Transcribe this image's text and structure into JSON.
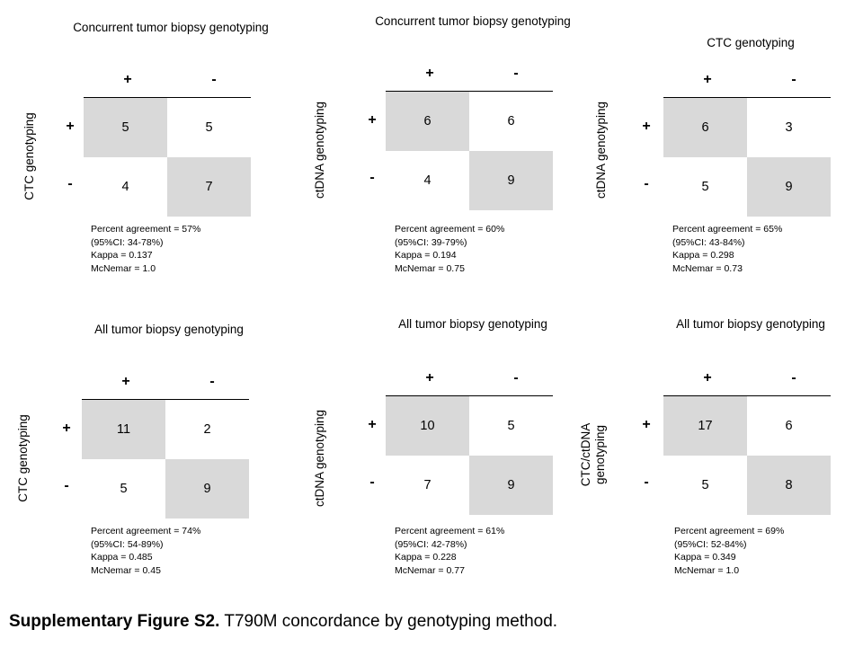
{
  "panels": [
    {
      "col_title": "Concurrent tumor biopsy genotyping",
      "row_title": "CTC genotyping",
      "col_labels": [
        "+",
        "-"
      ],
      "row_labels": [
        "+",
        "-"
      ],
      "cells": [
        "5",
        "5",
        "4",
        "7"
      ],
      "stats": [
        "Percent agreement = 57%",
        "(95%CI:  34-78%)",
        "Kappa = 0.137",
        "McNemar = 1.0"
      ]
    },
    {
      "col_title": "Concurrent tumor biopsy genotyping",
      "row_title": "ctDNA genotyping",
      "col_labels": [
        "+",
        "-"
      ],
      "row_labels": [
        "+",
        "-"
      ],
      "cells": [
        "6",
        "6",
        "4",
        "9"
      ],
      "stats": [
        "Percent agreement = 60%",
        "(95%CI:  39-79%)",
        "Kappa = 0.194",
        "McNemar = 0.75"
      ]
    },
    {
      "col_title": "CTC genotyping",
      "row_title": "ctDNA genotyping",
      "col_labels": [
        "+",
        "-"
      ],
      "row_labels": [
        "+",
        "-"
      ],
      "cells": [
        "6",
        "3",
        "5",
        "9"
      ],
      "stats": [
        "Percent agreement = 65%",
        "(95%CI:  43-84%)",
        "Kappa = 0.298",
        "McNemar = 0.73"
      ]
    },
    {
      "col_title": "All tumor biopsy genotyping",
      "row_title": "CTC genotyping",
      "col_labels": [
        "+",
        "-"
      ],
      "row_labels": [
        "+",
        "-"
      ],
      "cells": [
        "11",
        "2",
        "5",
        "9"
      ],
      "stats": [
        "Percent agreement = 74%",
        "(95%CI:  54-89%)",
        "Kappa = 0.485",
        "McNemar = 0.45"
      ]
    },
    {
      "col_title": "All tumor biopsy genotyping",
      "row_title": "ctDNA genotyping",
      "col_labels": [
        "+",
        "-"
      ],
      "row_labels": [
        "+",
        "-"
      ],
      "cells": [
        "10",
        "5",
        "7",
        "9"
      ],
      "stats": [
        "Percent agreement = 61%",
        "(95%CI:  42-78%)",
        "Kappa = 0.228",
        "McNemar = 0.77"
      ]
    },
    {
      "col_title": "All tumor biopsy genotyping",
      "row_title": "CTC/ctDNA genotyping",
      "col_labels": [
        "+",
        "-"
      ],
      "row_labels": [
        "+",
        "-"
      ],
      "cells": [
        "17",
        "6",
        "5",
        "8"
      ],
      "stats": [
        "Percent agreement = 69%",
        "(95%CI:  52-84%)",
        "Kappa = 0.349",
        "McNemar = 1.0"
      ]
    }
  ],
  "caption": {
    "label": "Supplementary Figure S2.",
    "text": " T790M concordance by genotyping method."
  },
  "colors": {
    "shade": "#d9d9d9"
  }
}
